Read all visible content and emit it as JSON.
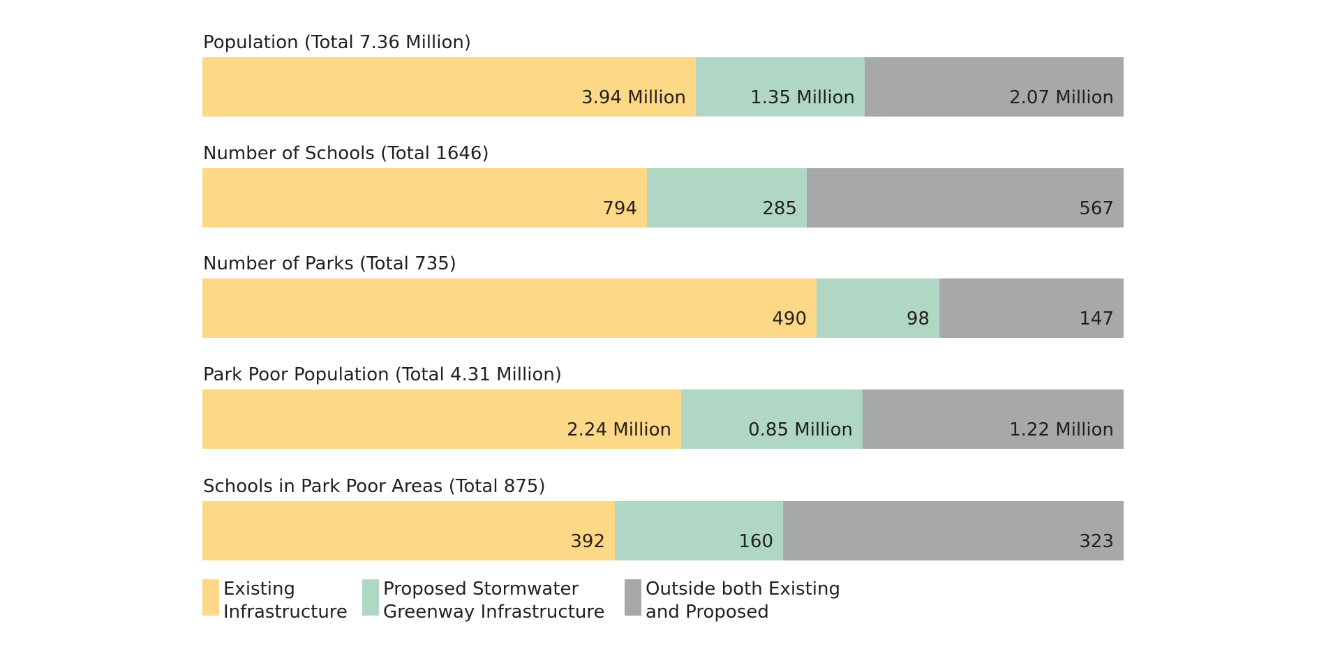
{
  "colors": {
    "existing": "#fdd886",
    "proposed": "#afd7c3",
    "outside": "#a7a8aa"
  },
  "legend": [
    {
      "key": "existing",
      "lines": [
        "Existing",
        "Infrastructure"
      ]
    },
    {
      "key": "proposed",
      "lines": [
        "Proposed Stormwater",
        "Greenway Infrastructure"
      ]
    },
    {
      "key": "outside",
      "lines": [
        "Outside both Existing",
        "and Proposed"
      ]
    }
  ],
  "chart_data": {
    "type": "bar",
    "orientation": "horizontal",
    "stacked": true,
    "normalized": true,
    "legend_placement": "bottom-left",
    "grid": false,
    "series": [
      {
        "name": "Existing Infrastructure",
        "key": "existing"
      },
      {
        "name": "Proposed Stormwater Greenway Infrastructure",
        "key": "proposed"
      },
      {
        "name": "Outside both Existing and Proposed",
        "key": "outside"
      }
    ],
    "rows": [
      {
        "title": "Population (Total 7.36 Million)",
        "values": [
          3.94,
          1.35,
          2.07
        ],
        "labels": [
          "3.94 Million",
          "1.35 Million",
          "2.07 Million"
        ]
      },
      {
        "title": "Number of Schools (Total 1646)",
        "values": [
          794,
          285,
          567
        ],
        "labels": [
          "794",
          "285",
          "567"
        ]
      },
      {
        "title": "Number of Parks (Total 735)",
        "values": [
          490,
          98,
          147
        ],
        "labels": [
          "490",
          "98",
          "147"
        ]
      },
      {
        "title": "Park Poor Population (Total 4.31 Million)",
        "values": [
          2.24,
          0.85,
          1.22
        ],
        "labels": [
          "2.24 Million",
          "0.85 Million",
          "1.22 Million"
        ]
      },
      {
        "title": "Schools in Park Poor Areas (Total 875)",
        "values": [
          392,
          160,
          323
        ],
        "labels": [
          "392",
          "160",
          "323"
        ]
      }
    ]
  }
}
